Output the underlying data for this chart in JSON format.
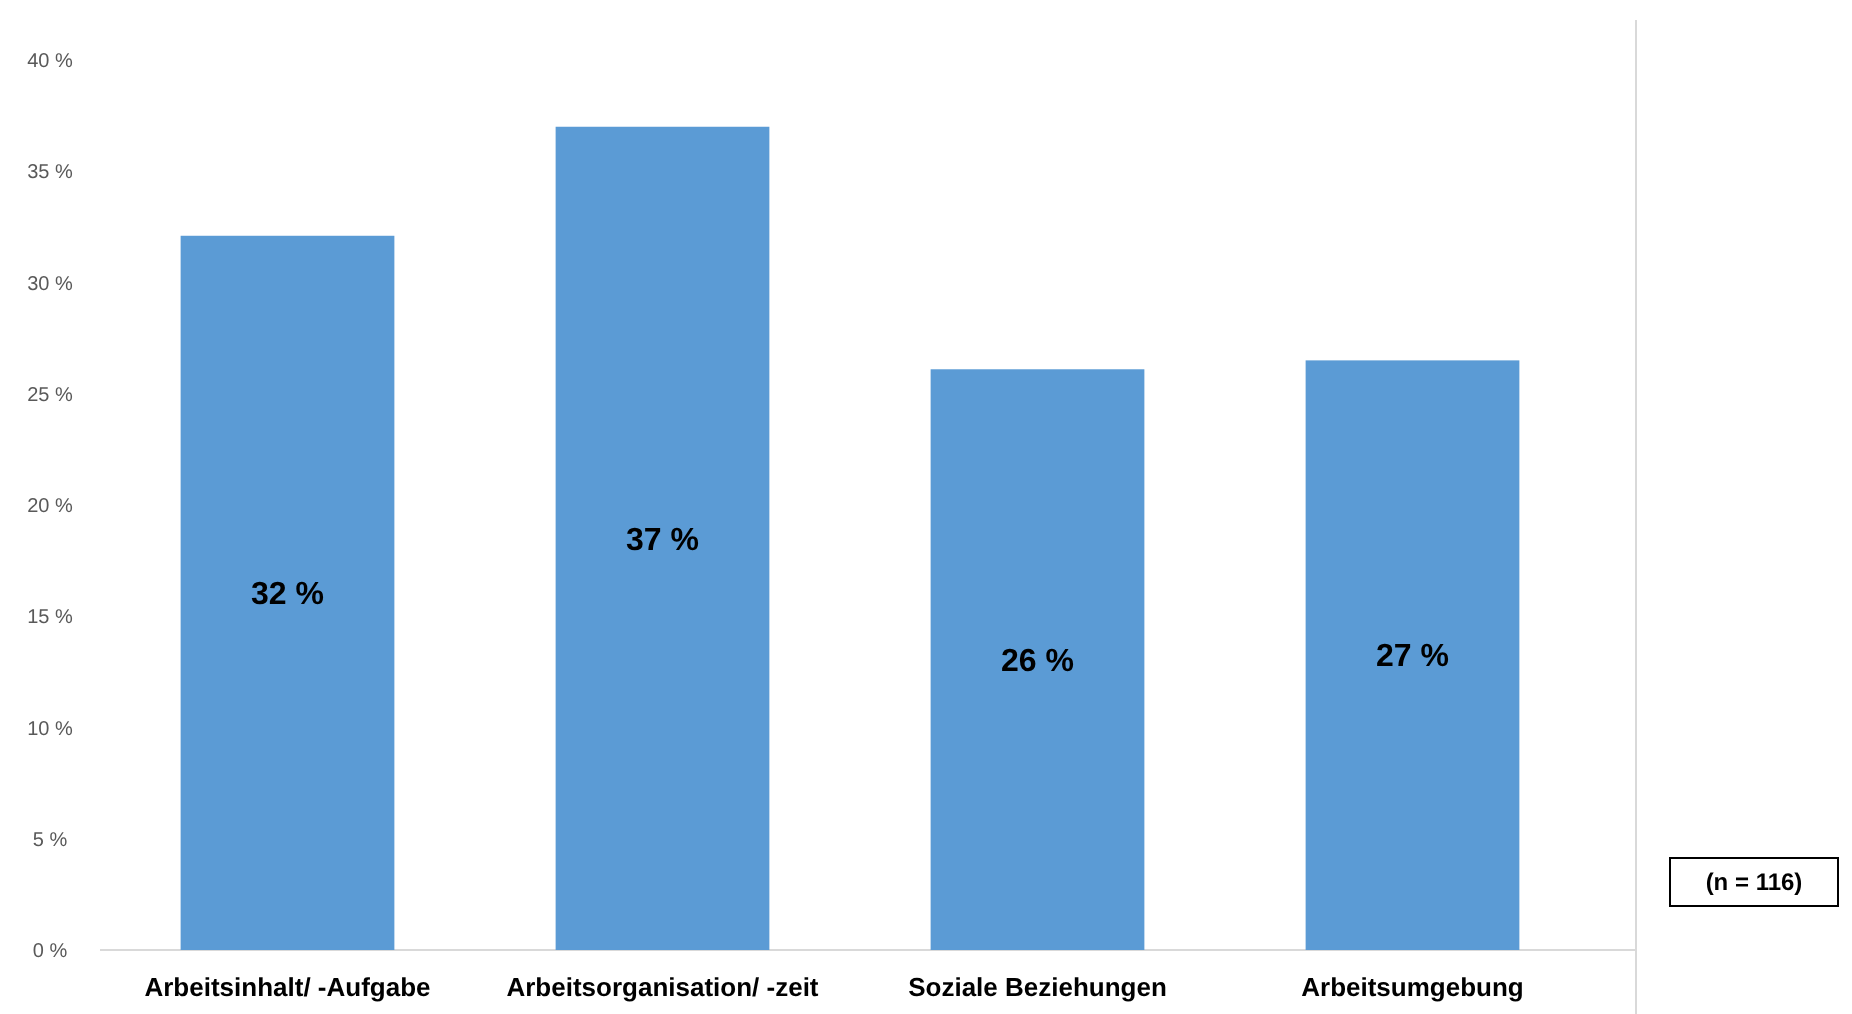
{
  "chart_data": {
    "type": "bar",
    "categories": [
      "Arbeitsinhalt/ -Aufgabe",
      "Arbeitsorganisation/ -zeit",
      "Soziale Beziehungen",
      "Arbeitsumgebung"
    ],
    "values": [
      32.1,
      37,
      26.1,
      26.5
    ],
    "value_labels": [
      "32 %",
      "37 %",
      "26 %",
      "27 %"
    ],
    "color": "#5b9bd5",
    "ylim": [
      0,
      40
    ],
    "yticks": [
      {
        "value": 0,
        "label": "0 %"
      },
      {
        "value": 5,
        "label": "5 %"
      },
      {
        "value": 10,
        "label": "10 %"
      },
      {
        "value": 15,
        "label": "15 %"
      },
      {
        "value": 20,
        "label": "20 %"
      },
      {
        "value": 25,
        "label": "25 %"
      },
      {
        "value": 30,
        "label": "30 %"
      },
      {
        "value": 35,
        "label": "35 %"
      },
      {
        "value": 40,
        "label": "40 %"
      }
    ],
    "grid": false,
    "annotations": [
      "(n = 116)"
    ]
  }
}
